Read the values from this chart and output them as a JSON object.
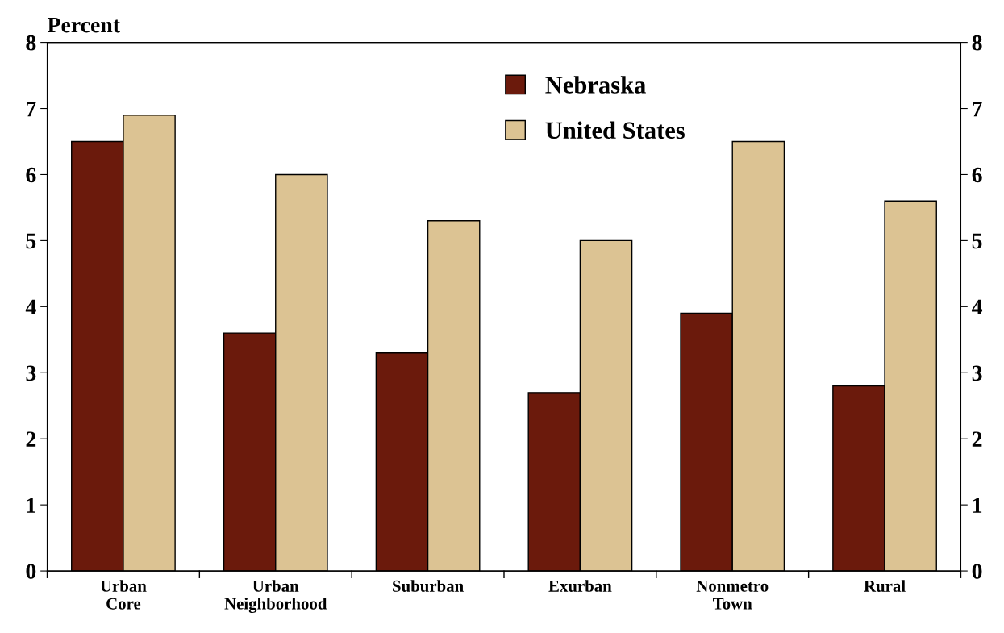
{
  "chart_data": {
    "type": "bar",
    "ylabel": "Percent",
    "categories": [
      "Urban\nCore",
      "Urban\nNeighborhood",
      "Suburban",
      "Exurban",
      "Nonmetro\nTown",
      "Rural"
    ],
    "series": [
      {
        "name": "Nebraska",
        "color": "#6b1a0c",
        "values": [
          6.5,
          3.6,
          3.3,
          2.7,
          3.9,
          2.8
        ]
      },
      {
        "name": "United States",
        "color": "#dcc393",
        "values": [
          6.9,
          6.0,
          5.3,
          5.0,
          6.5,
          5.6
        ]
      }
    ],
    "ylim": [
      0,
      8
    ],
    "yticks": [
      0,
      1,
      2,
      3,
      4,
      5,
      6,
      7,
      8
    ],
    "y2lim": [
      0,
      8
    ],
    "y2ticks": [
      0,
      1,
      2,
      3,
      4,
      5,
      6,
      7,
      8
    ],
    "grid": false,
    "legend": "top"
  }
}
